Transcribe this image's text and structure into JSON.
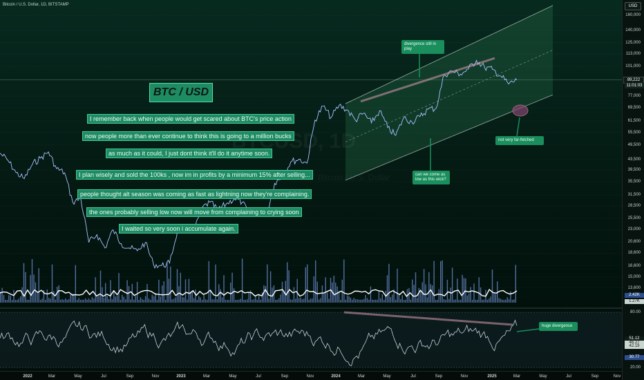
{
  "header": {
    "symbol": "Bitcoin / U.S. Dollar, 1D, BITSTAMP"
  },
  "currency": "USD",
  "title": "BTC / USD",
  "watermark": {
    "main": "BTCUSD, 1D",
    "sub": "Bitcoin / U.S. Dollar"
  },
  "notes": [
    "I remember back when people would get scared about BTC's price action",
    "now people more than ever continue to think this is going to a million bucks",
    "as much as it could, I just dont think it'll do it anytime soon.",
    "I plan wisely and sold the 100ks , now im in profits by a minimum 15% after selling...",
    "people thought alt season was coming as fast as lightning now they're complaining.",
    "the ones probably selling low now will move from complaining to crying soon",
    "I waited so very soon i accumulate again."
  ],
  "callouts": {
    "divergence": "divergence still in play",
    "wick": "can we come as low as this wick?",
    "fetched": "not very far-fetched",
    "huge": "huge divergence"
  },
  "price_axis": {
    "ticks": [
      "160,000",
      "140,000",
      "125,000",
      "113,000",
      "101,000",
      "89,000",
      "77,000",
      "69,500",
      "61,500",
      "55,500",
      "49,500",
      "43,500",
      "39,500",
      "35,500",
      "31,500",
      "28,500",
      "25,500",
      "23,000",
      "20,600",
      "18,600",
      "16,600",
      "15,000",
      "13,600"
    ],
    "current_price": "89,222",
    "current_time": "11:01:03",
    "volume_labels": [
      "2.42K",
      "1.27K"
    ]
  },
  "rsi_axis": {
    "ticks": [
      "80.00",
      "20.00"
    ],
    "labels": [
      "51.12",
      "46.27",
      "42.19",
      "30.77"
    ]
  },
  "date_axis": {
    "ticks": [
      "2022",
      "Mar",
      "May",
      "Jul",
      "Sep",
      "Nov",
      "2023",
      "Mar",
      "May",
      "Jul",
      "Sep",
      "Nov",
      "2024",
      "Mar",
      "May",
      "Jul",
      "Sep",
      "Nov",
      "2025",
      "Mar",
      "May",
      "Jul",
      "Sep",
      "Nov"
    ]
  },
  "chart_data": {
    "type": "line",
    "series": [
      {
        "values": [
          46000,
          43000,
          38500,
          36500,
          41500,
          44000,
          46500,
          40000,
          38500,
          29500,
          30500,
          20500,
          22000,
          19500,
          23000,
          20300,
          19500,
          19000,
          20500,
          16800,
          16600,
          17000,
          23000,
          23500,
          22500,
          28000,
          29500,
          27500,
          29000,
          30500,
          29500,
          26000,
          27000,
          26500,
          35000,
          37500,
          42500,
          43500,
          42000,
          62000,
          70500,
          63500,
          71000,
          68000,
          62000,
          66000,
          60500,
          67500,
          58000,
          54000,
          63500,
          61000,
          64000,
          68500,
          69000,
          93500,
          96500,
          94000,
          98500,
          106500,
          100000,
          98000,
          92500,
          86000,
          89222
        ]
      }
    ],
    "x_start": "Dec 2021",
    "x_end": "Mar 2025",
    "scale": "log",
    "ylim": [
      12500,
      175000
    ],
    "channel": {
      "upper_start": 72000,
      "upper_end": 175000,
      "lower_start": 36000,
      "lower_end": 78000
    },
    "rsi": {
      "ylim": [
        20,
        80
      ],
      "levels": [
        80,
        20
      ]
    }
  },
  "colors": {
    "price": "#a9c4ff",
    "channel_line": "#d9e5df",
    "channel_fill": "#2c7a54",
    "annotation_bg": "#1f8a63",
    "trend_line": "#d99cb0"
  }
}
